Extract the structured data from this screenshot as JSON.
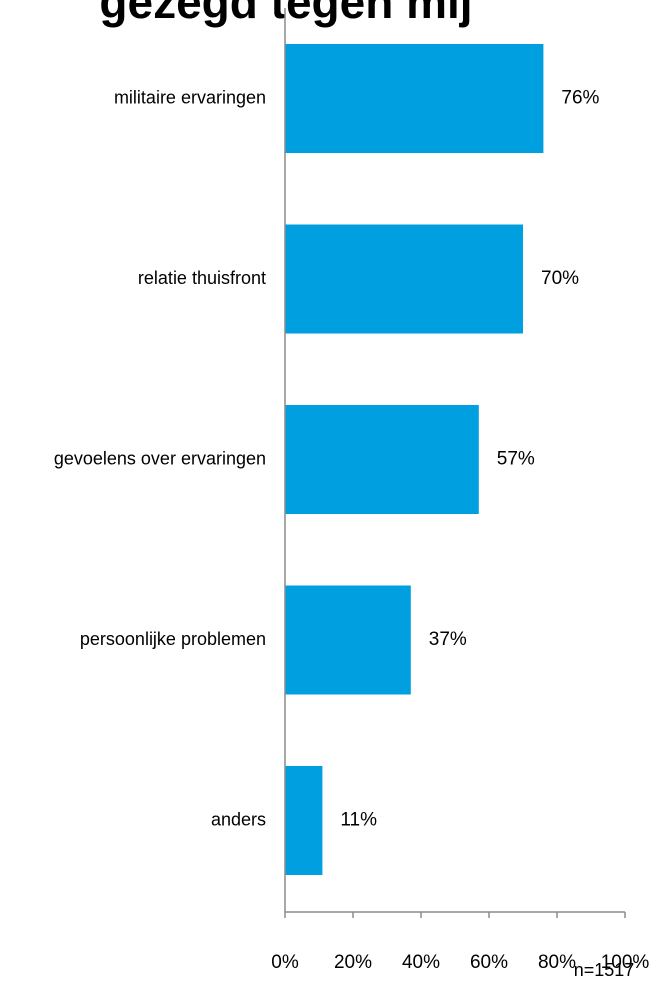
{
  "chart_data": {
    "type": "bar",
    "orientation": "horizontal",
    "title_visible": "gezegd tegen mij",
    "categories": [
      "militaire ervaringen",
      "relatie thuisfront",
      "gevoelens over ervaringen",
      "persoonlijke problemen",
      "anders"
    ],
    "values": [
      76,
      70,
      57,
      37,
      11
    ],
    "value_labels": [
      "76%",
      "70%",
      "57%",
      "37%",
      "11%"
    ],
    "xlim": [
      0,
      100
    ],
    "x_ticks": [
      0,
      20,
      40,
      60,
      80,
      100
    ],
    "x_tick_labels": [
      "0%",
      "20%",
      "40%",
      "60%",
      "80%",
      "100%"
    ],
    "grid": false,
    "legend": "none",
    "bar_color": "#009FE0",
    "axis_color": "#8C8C8C",
    "note": "n=1517"
  }
}
